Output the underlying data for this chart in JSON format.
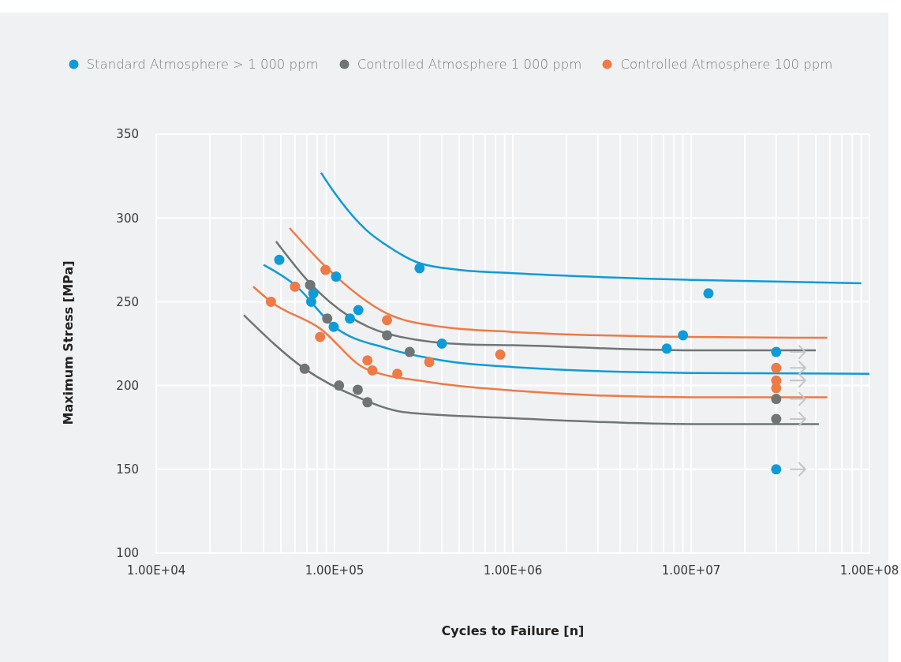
{
  "chart_data": {
    "type": "scatter",
    "xlabel": "Cycles to Failure [n]",
    "ylabel": "Maximum Stress [MPa]",
    "xlim": [
      10000,
      100000000
    ],
    "ylim": [
      100,
      350
    ],
    "log": "x",
    "grid": true,
    "legend": "top",
    "marker": "circle",
    "xticks": [
      {
        "value": 10000,
        "label": "1.00E+04"
      },
      {
        "value": 20000,
        "label": null
      },
      {
        "value": 30000,
        "label": null
      },
      {
        "value": 40000,
        "label": null
      },
      {
        "value": 50000,
        "label": null
      },
      {
        "value": 60000,
        "label": null
      },
      {
        "value": 70000,
        "label": null
      },
      {
        "value": 80000,
        "label": null
      },
      {
        "value": 90000,
        "label": null
      },
      {
        "value": 100000,
        "label": "1.00E+05"
      },
      {
        "value": 200000,
        "label": null
      },
      {
        "value": 300000,
        "label": null
      },
      {
        "value": 400000,
        "label": null
      },
      {
        "value": 500000,
        "label": null
      },
      {
        "value": 600000,
        "label": null
      },
      {
        "value": 700000,
        "label": null
      },
      {
        "value": 800000,
        "label": null
      },
      {
        "value": 900000,
        "label": null
      },
      {
        "value": 1000000,
        "label": "1.00E+06"
      },
      {
        "value": 2000000,
        "label": null
      },
      {
        "value": 3000000,
        "label": null
      },
      {
        "value": 4000000,
        "label": null
      },
      {
        "value": 5000000,
        "label": null
      },
      {
        "value": 6000000,
        "label": null
      },
      {
        "value": 7000000,
        "label": null
      },
      {
        "value": 8000000,
        "label": null
      },
      {
        "value": 9000000,
        "label": null
      },
      {
        "value": 10000000,
        "label": "1.00E+07"
      },
      {
        "value": 20000000,
        "label": null
      },
      {
        "value": 30000000,
        "label": null
      },
      {
        "value": 40000000,
        "label": null
      },
      {
        "value": 50000000,
        "label": null
      },
      {
        "value": 60000000,
        "label": null
      },
      {
        "value": 70000000,
        "label": null
      },
      {
        "value": 80000000,
        "label": null
      },
      {
        "value": 90000000,
        "label": null
      },
      {
        "value": 100000000,
        "label": "1.00E+08"
      }
    ],
    "yticks": [
      100,
      150,
      200,
      250,
      300,
      350
    ],
    "series": [
      {
        "type": "line",
        "color": "#0e9bd8",
        "marker": "none",
        "x": [
          84000,
          100000,
          150000,
          200000,
          300000,
          500000,
          1000000,
          10000000,
          90000000
        ],
        "values": [
          327,
          315,
          293,
          283,
          273,
          269,
          267,
          263,
          261
        ]
      },
      {
        "type": "line",
        "color": "#0e9bd8",
        "marker": "none",
        "x": [
          40000,
          60000,
          100000,
          200000,
          400000,
          1000000,
          10000000,
          100000000
        ],
        "values": [
          272,
          260,
          235,
          222,
          215,
          211,
          207.5,
          207
        ]
      },
      {
        "type": "line",
        "color": "#6f7575",
        "marker": "none",
        "x": [
          47000,
          73000,
          197000,
          550000,
          1000000,
          10000000,
          50000000
        ],
        "values": [
          286,
          261,
          231,
          224.5,
          224,
          221,
          221
        ]
      },
      {
        "type": "line",
        "color": "#6f7575",
        "marker": "none",
        "x": [
          31000,
          68000,
          135000,
          250000,
          1000000,
          10000000,
          52000000
        ],
        "values": [
          242,
          210,
          193,
          184,
          180.5,
          177,
          177
        ]
      },
      {
        "type": "line",
        "color": "#ee7a45",
        "marker": "none",
        "x": [
          56000,
          89000,
          197000,
          400000,
          1000000,
          10000000,
          58000000
        ],
        "values": [
          294,
          271,
          243,
          235,
          232,
          229,
          228.5
        ]
      },
      {
        "type": "line",
        "color": "#ee7a45",
        "marker": "none",
        "x": [
          35000,
          44000,
          83000,
          150000,
          340000,
          1000000,
          10000000,
          58000000
        ],
        "values": [
          259,
          250,
          234,
          210,
          202,
          197,
          193,
          193
        ]
      },
      {
        "name": "Standard Atmosphere > 1 000 ppm",
        "color": "#0e9bd8",
        "x": [
          49000,
          76000,
          74000,
          102000,
          136000,
          122000,
          99000,
          300000,
          400000,
          7300000,
          9000000,
          12500000,
          30000000,
          30000000
        ],
        "values": [
          275,
          255,
          250,
          265,
          245,
          240,
          235,
          270,
          225,
          222,
          230,
          255,
          220,
          150
        ]
      },
      {
        "name": "Controlled Atmosphere 1 000 ppm",
        "color": "#6f7575",
        "x": [
          73000,
          91000,
          197000,
          264000,
          68000,
          106000,
          135000,
          153000,
          30000000,
          30000000
        ],
        "values": [
          260,
          240,
          230,
          220,
          210,
          200,
          197.5,
          190,
          192,
          180
        ]
      },
      {
        "name": "Controlled Atmosphere 100 ppm",
        "color": "#ee7a45",
        "x": [
          44000,
          60000,
          89000,
          83000,
          197000,
          153000,
          163000,
          225000,
          340000,
          850000,
          30000000,
          30000000,
          30000000
        ],
        "values": [
          250,
          259,
          269,
          229,
          239,
          215,
          209,
          207,
          214,
          218.5,
          210.5,
          203,
          198.5
        ]
      }
    ]
  }
}
